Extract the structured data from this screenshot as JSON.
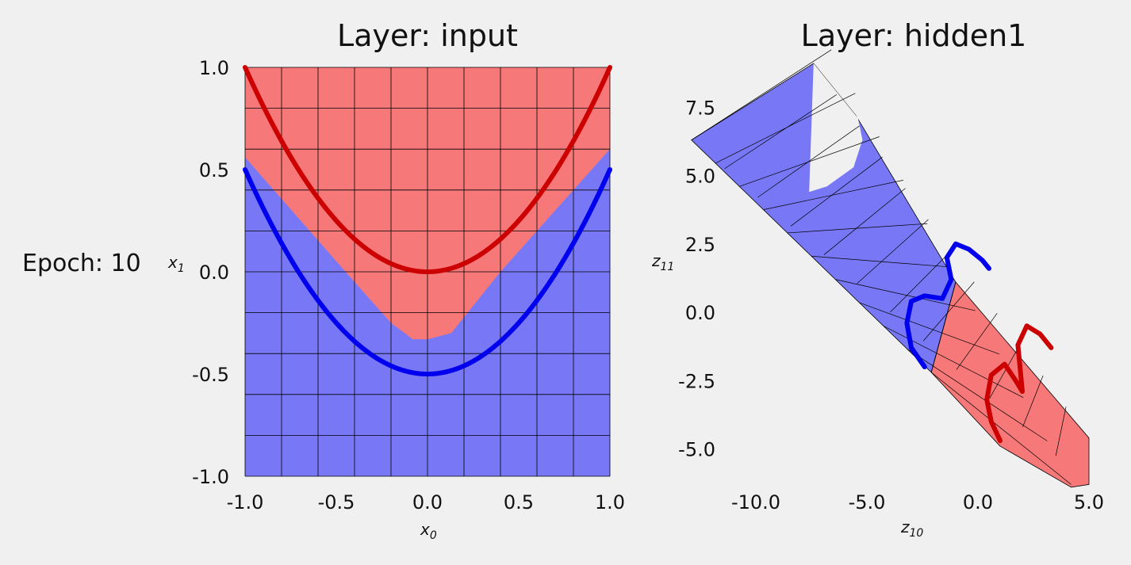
{
  "epoch_label": "Epoch: 10",
  "colors": {
    "positive": "#f77878",
    "negative": "#7878f7",
    "red_curve": "#cc0000",
    "blue_curve": "#0000ee",
    "background": "#f0f0f0"
  },
  "chart_data": [
    {
      "type": "area",
      "title": "Layer: input",
      "xlabel_base": "x",
      "xlabel_sub": "0",
      "ylabel_base": "x",
      "ylabel_sub": "1",
      "xlim": [
        -1.0,
        1.0
      ],
      "ylim": [
        -1.0,
        1.0
      ],
      "xticks": [
        "-1.0",
        "-0.5",
        "0.0",
        "0.5",
        "1.0"
      ],
      "yticks": [
        "1.0",
        "0.5",
        "0.0",
        "-0.5",
        "-1.0"
      ],
      "grid": true,
      "decision_boundary": {
        "x": [
          -1.0,
          -0.4,
          -0.2,
          -0.08,
          0.0,
          0.13,
          0.4,
          1.0
        ],
        "y": [
          0.56,
          -0.05,
          -0.25,
          -0.33,
          -0.33,
          -0.3,
          0.0,
          0.6
        ]
      },
      "series": [
        {
          "color": "red",
          "equation": "y = x^2",
          "x_range": [
            -1.0,
            1.0
          ]
        },
        {
          "color": "blue",
          "equation": "y = x^2 - 0.5",
          "x_range": [
            -1.0,
            1.0
          ]
        }
      ]
    },
    {
      "type": "area",
      "title": "Layer: hidden1",
      "xlabel_base": "z",
      "xlabel_sub": "10",
      "ylabel_base": "z",
      "ylabel_sub": "11",
      "xticks": [
        "-10.0",
        "-5.0",
        "0.0",
        "5.0"
      ],
      "yticks": [
        "7.5",
        "5.0",
        "2.5",
        "0.0",
        "-2.5",
        "-5.0"
      ],
      "tick_values_x": [
        -10,
        -5,
        0,
        5
      ],
      "tick_values_y": [
        7.5,
        5,
        2.5,
        0,
        -2.5,
        -5
      ],
      "grid": false,
      "blue_region": [
        [
          -12.9,
          6.3
        ],
        [
          -7.4,
          9.1
        ],
        [
          -5.5,
          7.2
        ],
        [
          -1.0,
          1.1
        ],
        [
          -2.1,
          -2.2
        ],
        [
          -12.9,
          6.3
        ]
      ],
      "blue_notch": [
        [
          -7.4,
          9.1
        ],
        [
          -5.4,
          7.1
        ],
        [
          -5.2,
          6.3
        ],
        [
          -5.6,
          5.3
        ],
        [
          -6.8,
          4.6
        ],
        [
          -7.6,
          4.4
        ]
      ],
      "red_region": [
        [
          -1.0,
          1.1
        ],
        [
          5.0,
          -4.6
        ],
        [
          5.0,
          -6.3
        ],
        [
          4.2,
          -6.4
        ],
        [
          1.0,
          -4.9
        ],
        [
          -2.1,
          -2.2
        ],
        [
          -1.0,
          1.1
        ]
      ],
      "series": [
        {
          "color": "blue",
          "x": [
            -2.4,
            -3.0,
            -3.2,
            -3.0,
            -2.4,
            -1.6,
            -1.2,
            -1.4,
            -1.0,
            -0.4,
            0.2,
            0.5
          ],
          "y": [
            -2.0,
            -1.3,
            -0.4,
            0.4,
            0.6,
            0.5,
            1.2,
            2.0,
            2.5,
            2.3,
            1.9,
            1.6
          ]
        },
        {
          "color": "red",
          "x": [
            1.0,
            0.6,
            0.4,
            0.6,
            1.2,
            1.7,
            2.0,
            1.8,
            2.2,
            2.8,
            3.3
          ],
          "y": [
            -4.7,
            -4.0,
            -3.2,
            -2.3,
            -1.9,
            -2.5,
            -2.9,
            -1.2,
            -0.5,
            -0.8,
            -1.3
          ]
        }
      ]
    }
  ]
}
